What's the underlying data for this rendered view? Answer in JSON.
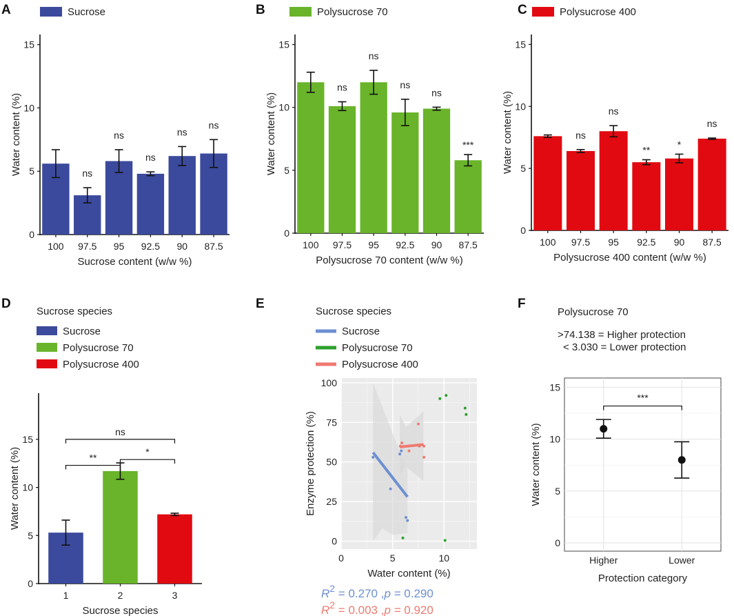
{
  "colors": {
    "sucrose": "#3b4a9c",
    "polysucrose70": "#69b42a",
    "polysucrose400": "#e20a11",
    "line_sucrose": "#6c8fd0",
    "line_ps400": "#ef7a70",
    "scatter_ps70": "#2ca02c",
    "panel_bg": "#ebebeb",
    "ribbon": "#d9d9d9"
  },
  "chart_data": [
    {
      "panel": "A",
      "type": "bar",
      "legend": "Sucrose",
      "color_key": "sucrose",
      "categories": [
        "100",
        "97.5",
        "95",
        "92.5",
        "90",
        "87.5"
      ],
      "values": [
        5.6,
        3.1,
        5.8,
        4.8,
        6.2,
        6.4
      ],
      "errors": [
        1.1,
        0.6,
        0.9,
        0.15,
        0.75,
        1.1
      ],
      "significance": [
        "",
        "ns",
        "ns",
        "ns",
        "ns",
        "ns"
      ],
      "ylim": [
        0,
        15.8
      ],
      "yticks": [
        "0",
        "5",
        "10",
        "15"
      ],
      "ytick_values": [
        0,
        5,
        10,
        15
      ],
      "xlabel": "Sucrose content (w/w %)",
      "ylabel": "Water content (%)"
    },
    {
      "panel": "B",
      "type": "bar",
      "legend": "Polysucrose 70",
      "color_key": "polysucrose70",
      "categories": [
        "100",
        "97.5",
        "95",
        "92.5",
        "90",
        "87.5"
      ],
      "values": [
        12.0,
        10.1,
        12.0,
        9.6,
        9.9,
        5.8
      ],
      "errors": [
        0.8,
        0.35,
        0.95,
        1.05,
        0.12,
        0.45
      ],
      "significance": [
        "",
        "ns",
        "ns",
        "ns",
        "ns",
        "***"
      ],
      "ylim": [
        0,
        15.8
      ],
      "yticks": [
        "0",
        "5",
        "10",
        "15"
      ],
      "ytick_values": [
        0,
        5,
        10,
        15
      ],
      "xlabel": "Polysucrose 70 content (w/w %)",
      "ylabel": "Water content (%)"
    },
    {
      "panel": "C",
      "type": "bar",
      "legend": "Polysucrose 400",
      "color_key": "polysucrose400",
      "categories": [
        "100",
        "97.5",
        "95",
        "92.5",
        "90",
        "87.5"
      ],
      "values": [
        7.6,
        6.4,
        8.0,
        5.5,
        5.8,
        7.4
      ],
      "errors": [
        0.1,
        0.12,
        0.45,
        0.2,
        0.35,
        0.05
      ],
      "significance": [
        "",
        "ns",
        "ns",
        "**",
        "*",
        "ns"
      ],
      "ylim": [
        0,
        15.8
      ],
      "yticks": [
        "0",
        "5",
        "10",
        "15"
      ],
      "ytick_values": [
        0,
        5,
        10,
        15
      ],
      "xlabel": "Polysucrose 400 content (w/w %)",
      "ylabel": "Water content (%)"
    },
    {
      "panel": "D",
      "type": "bar",
      "legend_title": "Sucrose species",
      "legend": [
        "Sucrose",
        "Polysucrose 70",
        "Polysucrose 400"
      ],
      "color_keys": [
        "sucrose",
        "polysucrose70",
        "polysucrose400"
      ],
      "categories": [
        "1",
        "2",
        "3"
      ],
      "values": [
        5.3,
        11.7,
        7.2
      ],
      "errors": [
        1.3,
        0.85,
        0.12
      ],
      "brackets": [
        {
          "from": 0,
          "to": 2,
          "y": 15.0,
          "label": "ns"
        },
        {
          "from": 0,
          "to": 1,
          "y": 12.3,
          "label": "**"
        },
        {
          "from": 1,
          "to": 2,
          "y": 12.9,
          "label": "*"
        }
      ],
      "ylim": [
        0,
        19.8
      ],
      "yticks": [
        "0",
        "5",
        "10",
        "15"
      ],
      "ytick_values": [
        0,
        5,
        10,
        15
      ],
      "xlabel": "Sucrose species",
      "ylabel": "Water content (%)"
    },
    {
      "panel": "E",
      "type": "scatter",
      "legend_title": "Sucrose species",
      "legend": [
        "Sucrose",
        "Polysucrose 70",
        "Polysucrose 400"
      ],
      "xlim": [
        0,
        13.2
      ],
      "ylim": [
        -5,
        103
      ],
      "xticks": [
        "0",
        "5",
        "10"
      ],
      "xtick_values": [
        0,
        5,
        10
      ],
      "yticks": [
        "0",
        "25",
        "50",
        "75",
        "100"
      ],
      "ytick_values": [
        0,
        25,
        50,
        75,
        100
      ],
      "xlabel": "Water content (%)",
      "ylabel": "Enzyme protection (%)",
      "series": [
        {
          "name": "Sucrose",
          "color_key": "line_sucrose",
          "points": [
            [
              3.1,
              53
            ],
            [
              4.8,
              33
            ],
            [
              5.7,
              55
            ],
            [
              5.85,
              57
            ],
            [
              6.3,
              15
            ],
            [
              6.45,
              13
            ]
          ],
          "fit": [
            [
              3.1,
              56
            ],
            [
              6.45,
              28
            ]
          ]
        },
        {
          "name": "Polysucrose 70",
          "color_key": "scatter_ps70",
          "points": [
            [
              6.0,
              2
            ],
            [
              9.6,
              90
            ],
            [
              10.2,
              92
            ],
            [
              10.1,
              0.5
            ],
            [
              12.05,
              84
            ],
            [
              12.15,
              80
            ]
          ]
        },
        {
          "name": "Polysucrose 400",
          "color_key": "line_ps400",
          "points": [
            [
              5.75,
              60
            ],
            [
              5.9,
              62
            ],
            [
              6.6,
              57
            ],
            [
              7.5,
              74
            ],
            [
              7.6,
              60
            ],
            [
              8.05,
              53
            ],
            [
              8.05,
              60
            ]
          ],
          "fit": [
            [
              5.7,
              59.5
            ],
            [
              8.0,
              61
            ]
          ]
        }
      ],
      "stats": [
        {
          "r2": "0.270",
          "p": "0.290",
          "color_key": "line_sucrose"
        },
        {
          "r2": "0.003",
          "p": "0.920",
          "color_key": "line_ps400"
        }
      ],
      "stat_prefix": "R",
      "stat_sup": "2",
      "stat_eq": " = ",
      "stat_sep": ",",
      "stat_p": "p = "
    },
    {
      "panel": "F",
      "type": "scatter",
      "title": "Polysucrose 70",
      "thresholds": [
        ">74.138  = Higher protection",
        "< 3.030  = Lower protection"
      ],
      "categories": [
        "Higher",
        "Lower"
      ],
      "values": [
        11.0,
        8.0
      ],
      "errors": [
        0.9,
        1.75
      ],
      "bracket": {
        "label": "***",
        "y": 13.2
      },
      "ylim": [
        -0.8,
        15.9
      ],
      "yticks": [
        "0",
        "5",
        "10",
        "15"
      ],
      "ytick_values": [
        0,
        5,
        10,
        15
      ],
      "xlabel": "Protection category",
      "ylabel": "Water content (%)"
    }
  ]
}
